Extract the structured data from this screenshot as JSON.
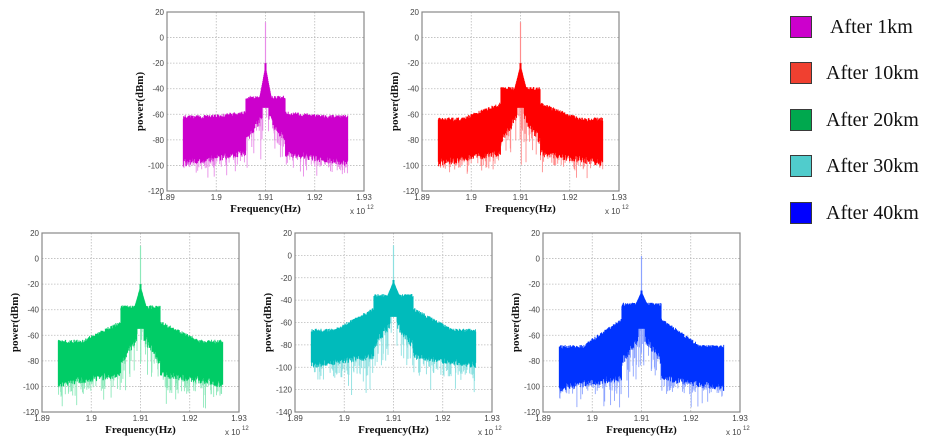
{
  "legend": [
    {
      "label": "After 1km",
      "color": "#cc00cc"
    },
    {
      "label": "After 10km",
      "color": "#f04030"
    },
    {
      "label": "After 20km",
      "color": "#00a84e"
    },
    {
      "label": "After 30km",
      "color": "#50cccc"
    },
    {
      "label": "After 40km",
      "color": "#0000ff"
    }
  ],
  "chart_data": [
    {
      "type": "line",
      "series_name": "After 1km",
      "color": "#cc00cc",
      "xlabel": "Frequency(Hz)",
      "ylabel": "power(dBm)",
      "x_exponent_label": "x 10",
      "x_exponent": "12",
      "xlim": [
        1.89,
        1.93
      ],
      "ylim": [
        -120,
        20
      ],
      "xticks": [
        "1.89",
        "1.9",
        "1.91",
        "1.92",
        "1.93"
      ],
      "yticks": [
        "20",
        "0",
        "-20",
        "-40",
        "-60",
        "-80",
        "-100",
        "-120"
      ],
      "grid": true,
      "data_range_x": [
        1.8933,
        1.9267
      ],
      "carrier_x": 1.91,
      "carrier_peak_dbm": 12,
      "center_top_dbm": -20,
      "signal_band": [
        1.906,
        1.914
      ],
      "band_top_dbm": -47,
      "edge_top_dbm": -62,
      "noise_floor_dbm": -100,
      "min_dip_dbm": -112
    },
    {
      "type": "line",
      "series_name": "After 10km",
      "color": "#ff0000",
      "xlabel": "Frequency(Hz)",
      "ylabel": "power(dBm)",
      "x_exponent_label": "x 10",
      "x_exponent": "12",
      "xlim": [
        1.89,
        1.93
      ],
      "ylim": [
        -120,
        20
      ],
      "xticks": [
        "1.89",
        "1.9",
        "1.91",
        "1.92",
        "1.93"
      ],
      "yticks": [
        "20",
        "0",
        "-20",
        "-40",
        "-60",
        "-80",
        "-100",
        "-120"
      ],
      "grid": true,
      "data_range_x": [
        1.8933,
        1.9267
      ],
      "carrier_x": 1.91,
      "carrier_peak_dbm": 12,
      "center_top_dbm": -20,
      "signal_band": [
        1.906,
        1.914
      ],
      "band_top_dbm": -40,
      "edge_top_dbm": -64,
      "noise_floor_dbm": -100,
      "min_dip_dbm": -110
    },
    {
      "type": "line",
      "series_name": "After 20km",
      "color": "#00cc66",
      "xlabel": "Frequency(Hz)",
      "ylabel": "power(dBm)",
      "x_exponent_label": "x 10",
      "x_exponent": "12",
      "xlim": [
        1.89,
        1.93
      ],
      "ylim": [
        -120,
        20
      ],
      "xticks": [
        "1.89",
        "1.9",
        "1.91",
        "1.92",
        "1.93"
      ],
      "yticks": [
        "20",
        "0",
        "-20",
        "-40",
        "-60",
        "-80",
        "-100",
        "-120"
      ],
      "grid": true,
      "data_range_x": [
        1.8933,
        1.9267
      ],
      "carrier_x": 1.91,
      "carrier_peak_dbm": 10,
      "center_top_dbm": -20,
      "signal_band": [
        1.906,
        1.914
      ],
      "band_top_dbm": -38,
      "edge_top_dbm": -65,
      "noise_floor_dbm": -100,
      "min_dip_dbm": -118
    },
    {
      "type": "line",
      "series_name": "After 30km",
      "color": "#00bbbb",
      "xlabel": "Frequency(Hz)",
      "ylabel": "power(dBm)",
      "x_exponent_label": "x 10",
      "x_exponent": "12",
      "xlim": [
        1.89,
        1.93
      ],
      "ylim": [
        -140,
        20
      ],
      "xticks": [
        "1.89",
        "1.9",
        "1.91",
        "1.92",
        "1.93"
      ],
      "yticks": [
        "20",
        "0",
        "-20",
        "-40",
        "-60",
        "-80",
        "-100",
        "-120",
        "-140"
      ],
      "grid": true,
      "data_range_x": [
        1.8933,
        1.9267
      ],
      "carrier_x": 1.91,
      "carrier_peak_dbm": 9,
      "center_top_dbm": -22,
      "signal_band": [
        1.906,
        1.914
      ],
      "band_top_dbm": -36,
      "edge_top_dbm": -67,
      "noise_floor_dbm": -100,
      "min_dip_dbm": -125
    },
    {
      "type": "line",
      "series_name": "After 40km",
      "color": "#0033ff",
      "xlabel": "Frequency(Hz)",
      "ylabel": "power(dBm)",
      "x_exponent_label": "x 10",
      "x_exponent": "12",
      "xlim": [
        1.89,
        1.93
      ],
      "ylim": [
        -120,
        20
      ],
      "xticks": [
        "1.89",
        "1.9",
        "1.91",
        "1.92",
        "1.93"
      ],
      "yticks": [
        "20",
        "0",
        "-20",
        "-40",
        "-60",
        "-80",
        "-100",
        "-120"
      ],
      "grid": true,
      "data_range_x": [
        1.8933,
        1.9267
      ],
      "carrier_x": 1.91,
      "carrier_peak_dbm": 2,
      "center_top_dbm": -25,
      "signal_band": [
        1.906,
        1.914
      ],
      "band_top_dbm": -36,
      "edge_top_dbm": -69,
      "noise_floor_dbm": -103,
      "min_dip_dbm": -117
    }
  ]
}
